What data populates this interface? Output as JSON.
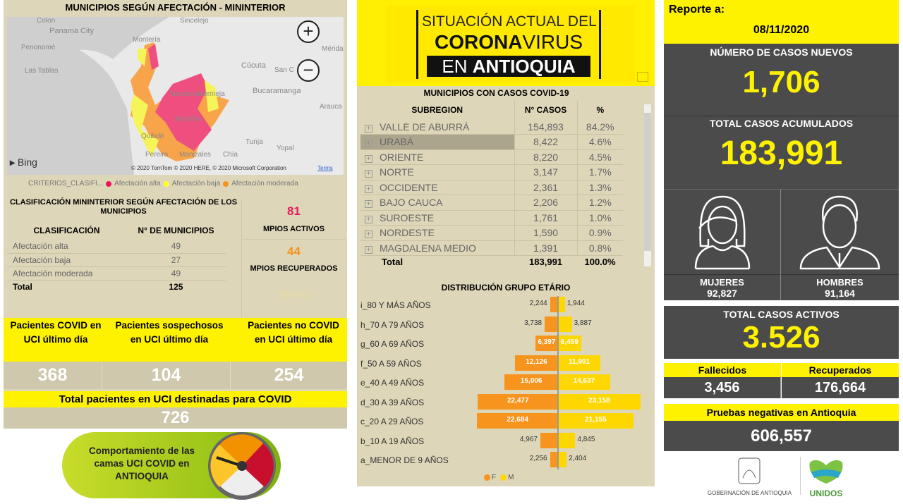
{
  "map_panel": {
    "title": "MUNICIPIOS SEGÚN AFECTACIÓN - MININTERIOR",
    "cities": [
      "Colon",
      "Panama City",
      "Penonomé",
      "Las Tablas",
      "Montería",
      "Sincelejo",
      "Cúcuta",
      "Mérida",
      "San C",
      "Bucaramanga",
      "Barrancabermeja",
      "Arauca",
      "Medellín",
      "Quibdó",
      "Tunja",
      "Yopal",
      "Manizales",
      "Pereira",
      "Chía"
    ],
    "attribution": "© 2020 TomTom © 2020 HERE, © 2020 Microsoft Corporation",
    "terms": "Terms",
    "bing": "Bing",
    "legend": {
      "label": "CRITERIOS_CLASIFI...",
      "items": [
        {
          "label": "Afectación alta",
          "color": "#e8175d"
        },
        {
          "label": "Afectación baja",
          "color": "#ffff33"
        },
        {
          "label": "Afectación moderada",
          "color": "#f7941d"
        }
      ]
    }
  },
  "classification": {
    "title": "CLASIFICACIÓN MININTERIOR SEGÚN AFECTACIÓN DE LOS MUNICIPIOS",
    "headers": [
      "CLASIFICACIÓN",
      "N° DE MUNICIPIOS"
    ],
    "rows": [
      [
        "Afectación alta",
        "49"
      ],
      [
        "Afectación baja",
        "27"
      ],
      [
        "Afectación moderada",
        "49"
      ]
    ],
    "total": [
      "Total",
      "125"
    ]
  },
  "mpios": {
    "activos_value": "81",
    "activos_label": "MPIOS ACTIVOS",
    "recuperados_value": "44",
    "recuperados_label": "MPIOS RECUPERADOS",
    "blank": "(Blank)"
  },
  "uci": {
    "cols": [
      {
        "label": "Pacientes COVID en UCI último día",
        "value": "368"
      },
      {
        "label": "Pacientes sospechosos en UCI último día",
        "value": "104"
      },
      {
        "label": "Pacientes no COVID en UCI último día",
        "value": "254"
      }
    ],
    "total_label": "Total pacientes en UCI destinadas para COVID",
    "total_value": "726",
    "gauge_label": "Comportamiento de las camas UCI COVID en ANTIOQUIA"
  },
  "banner": {
    "line1": "SITUACIÓN ACTUAL DEL",
    "line2a": "CORONA",
    "line2b": "VIRUS",
    "line3a": "EN",
    "line3b": "ANTIOQUIA"
  },
  "subregions": {
    "title": "MUNICIPIOS CON CASOS COVID-19",
    "headers": [
      "SUBREGION",
      "N° CASOS",
      "%"
    ],
    "rows": [
      [
        "VALLE DE ABURRÁ",
        "154,893",
        "84.2%"
      ],
      [
        "URABÁ",
        "8,422",
        "4.6%"
      ],
      [
        "ORIENTE",
        "8,220",
        "4.5%"
      ],
      [
        "NORTE",
        "3,147",
        "1.7%"
      ],
      [
        "OCCIDENTE",
        "2,361",
        "1.3%"
      ],
      [
        "BAJO CAUCA",
        "2,206",
        "1.2%"
      ],
      [
        "SUROESTE",
        "1,761",
        "1.0%"
      ],
      [
        "NORDESTE",
        "1,590",
        "0.9%"
      ],
      [
        "MAGDALENA MEDIO",
        "1,391",
        "0.8%"
      ]
    ],
    "total": [
      "Total",
      "183,991",
      "100.0%"
    ]
  },
  "chart_data": {
    "type": "bar",
    "title": "DISTRIBUCIÓN GRUPO ETÁRIO",
    "orientation": "horizontal-pyramid",
    "categories": [
      "i_80 Y MÁS AÑOS",
      "h_70 A 79 AÑOS",
      "g_60 A 69 AÑOS",
      "f_50 A 59 AÑOS",
      "e_40 A 49 AÑOS",
      "d_30 A 39 AÑOS",
      "c_20 A 29 AÑOS",
      "b_10 A 19 AÑOS",
      "a_MENOR DE 9 AÑOS"
    ],
    "series": [
      {
        "name": "F",
        "color": "#f7941d",
        "values": [
          2244,
          3738,
          6397,
          12126,
          15006,
          22477,
          22684,
          4967,
          2256
        ],
        "labels": [
          "2,244",
          "3,738",
          "6,397",
          "12,126",
          "15,006",
          "22,477",
          "22,684",
          "4,967",
          "2,256"
        ]
      },
      {
        "name": "M",
        "color": "#ffd700",
        "values": [
          1944,
          3887,
          6459,
          11901,
          14637,
          23158,
          21155,
          4845,
          2404
        ],
        "labels": [
          "1,944",
          "3,887",
          "6,459",
          "11,901",
          "14,637",
          "23,158",
          "21,155",
          "4,845",
          "2,404"
        ]
      }
    ],
    "legend": "bottom"
  },
  "report": {
    "label": "Reporte a:",
    "date": "08/11/2020",
    "new_label": "NÚMERO DE CASOS NUEVOS",
    "new_value": "1,706",
    "acc_label": "TOTAL CASOS ACUMULADOS",
    "acc_value": "183,991",
    "women_label": "MUJERES",
    "women_value": "92,827",
    "men_label": "HOMBRES",
    "men_value": "91,164",
    "active_label": "TOTAL CASOS ACTIVOS",
    "active_value": "3.526",
    "deaths_label": "Fallecidos",
    "deaths_value": "3,456",
    "recovered_label": "Recuperados",
    "recovered_value": "176,664",
    "neg_label": "Pruebas negativas en Antioquia",
    "neg_value": "606,557",
    "gov_logo": "GOBERNACIÓN DE ANTIOQUIA",
    "unidos_logo": "UNIDOS"
  }
}
